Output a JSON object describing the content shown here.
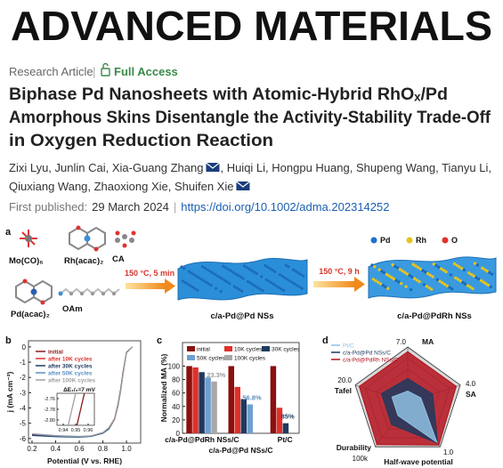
{
  "header": {
    "journal": "ADVANCED MATERIALS",
    "article_type": "Research Article",
    "separator": "|",
    "access": "Full Access"
  },
  "article": {
    "title_lines": [
      "Biphase Pd Nanosheets with Atomic-Hybrid RhOₓ/Pd",
      "Amorphous Skins Disentangle the Activity-Stability Trade-Off",
      "in Oxygen Reduction Reaction"
    ],
    "author_lines": [
      [
        {
          "text": "Zixi Lyu, Junlin Cai, Xia-Guang Zhang",
          "email": true
        },
        {
          "text": ", Huiqi Li, Hongpu Huang, Shupeng Wang, Tianyu Li,",
          "email": false
        }
      ],
      [
        {
          "text": "Qiuxiang Wang, Zhaoxiong Xie, Shuifen Xie",
          "email": true
        }
      ]
    ],
    "published_label": "First published:",
    "published_date": "29 March 2024",
    "doi": "https://doi.org/10.1002/adma.202314252"
  },
  "figure": {
    "panel_a": {
      "label": "a",
      "precursors": [
        "Mo(CO)₆",
        "Rh(acac)₂",
        "CA",
        "Pd(acac)₂",
        "OAm"
      ],
      "steps": [
        "150 °C, 5 min",
        "150 °C, 9 h"
      ],
      "products": [
        "c/a-Pd@Pd NSs",
        "c/a-Pd@PdRh NSs"
      ],
      "legend": [
        {
          "name": "Pd",
          "color": "#1f6fd1"
        },
        {
          "name": "Rh",
          "color": "#e5c41a"
        },
        {
          "name": "O",
          "color": "#e0322a"
        }
      ]
    },
    "panel_b": {
      "label": "b",
      "chart_data": {
        "type": "line",
        "x_label": "Potential (V vs. RHE)",
        "y_label": "j (mA cm⁻²)",
        "x": [
          0.2,
          0.4,
          0.6,
          0.7,
          0.8,
          0.85,
          0.9,
          0.93,
          0.95,
          0.97,
          1.0,
          1.05
        ],
        "series": [
          {
            "name": "initial",
            "color": "#8b1a1a",
            "values": [
              -5.75,
              -5.85,
              -5.9,
              -5.85,
              -5.65,
              -5.35,
              -4.7,
              -3.7,
              -2.78,
              -1.7,
              -0.35,
              0
            ]
          },
          {
            "name": "after 10K cycles",
            "color": "#e0302a",
            "values": [
              -5.7,
              -5.82,
              -5.88,
              -5.83,
              -5.62,
              -5.3,
              -4.68,
              -3.72,
              -2.8,
              -1.72,
              -0.36,
              0
            ]
          },
          {
            "name": "after 30K cycles",
            "color": "#1f3a5f",
            "values": [
              -5.8,
              -5.88,
              -5.92,
              -5.86,
              -5.66,
              -5.38,
              -4.75,
              -3.78,
              -2.85,
              -1.76,
              -0.37,
              0
            ]
          },
          {
            "name": "after 50K cycles",
            "color": "#5b8fc5",
            "values": [
              -5.72,
              -5.84,
              -5.9,
              -5.84,
              -5.63,
              -5.33,
              -4.72,
              -3.8,
              -2.88,
              -1.8,
              -0.38,
              0
            ]
          },
          {
            "name": "after 100K cycles",
            "color": "#a0a0a0",
            "values": [
              -5.68,
              -5.8,
              -5.86,
              -5.82,
              -5.6,
              -5.3,
              -4.74,
              -3.85,
              -2.95,
              -1.85,
              -0.4,
              0
            ]
          }
        ],
        "xlim": [
          0.17,
          1.12
        ],
        "ylim": [
          -6.3,
          0.4
        ],
        "xticks": [
          0.2,
          0.4,
          0.6,
          0.8,
          {
            "value": 1.0,
            "label": "1.0"
          }
        ],
        "yticks": [
          0,
          -1,
          -2,
          -3,
          -4,
          -5,
          -6
        ],
        "inset": {
          "annotation": "ΔE₁/₂=7 mV",
          "xlim": [
            0.935,
            0.965
          ],
          "ylim": [
            -2.81,
            -2.75
          ],
          "xticks": [
            0.94,
            0.95,
            0.96
          ],
          "yticks": [
            -2.76,
            -2.78,
            {
              "value": -2.8,
              "label": "-2.80"
            }
          ],
          "series": [
            {
              "color": "#8b1a1a",
              "x": [
                0.951,
                0.957
              ],
              "values": [
                -2.81,
                -2.75
              ]
            },
            {
              "color": "#a0a0a0",
              "x": [
                0.944,
                0.95
              ],
              "values": [
                -2.81,
                -2.75
              ]
            }
          ]
        }
      }
    },
    "panel_c": {
      "label": "c",
      "chart_data": {
        "type": "bar",
        "y_label": "Normalized MA (%)",
        "categories": [
          "c/a-Pd@PdRh NSs/C",
          "c/a-Pd@Pd NSs/C",
          "Pt/C"
        ],
        "series": [
          {
            "name": "initial",
            "color": "#8b1010",
            "values": [
              100,
              100,
              100
            ]
          },
          {
            "name": "10K cycles",
            "color": "#e0302a",
            "values": [
              98,
              69,
              38
            ]
          },
          {
            "name": "30K cycles",
            "color": "#1f3a5f",
            "values": [
              91,
              51,
              15
            ]
          },
          {
            "name": "50K cycles",
            "color": "#6f9fd0",
            "values": [
              83,
              43,
              null
            ]
          },
          {
            "name": "100K cycles",
            "color": "#a8a8a8",
            "values": [
              77,
              null,
              null
            ]
          }
        ],
        "ylim": [
          0,
          135
        ],
        "yticks": [
          0,
          20,
          40,
          60,
          80,
          100
        ],
        "annotations": [
          {
            "text": "23.3%",
            "color": "#9a9a9a"
          },
          {
            "text": "56.8%",
            "color": "#5a8fc0"
          },
          {
            "text": "85%",
            "color": "#1f3a5f"
          }
        ]
      }
    },
    "panel_d": {
      "label": "d",
      "chart_data": {
        "type": "radar",
        "axes": [
          {
            "name": "MA",
            "max": {
              "value": 7,
              "label": "7.0"
            }
          },
          {
            "name": "SA",
            "max": {
              "value": 4,
              "label": "4.0"
            }
          },
          {
            "name": "Half-wave potential",
            "max": {
              "value": 1,
              "label": "1.0"
            }
          },
          {
            "name": "Durability",
            "max": {
              "value": 100000,
              "label": "100k"
            }
          },
          {
            "name": "Tafel",
            "max": {
              "value": 20,
              "label": "20.0"
            }
          }
        ],
        "series": [
          {
            "name": "Pt/C",
            "color": "#8fc1e3",
            "values": [
              1.4,
              1.0,
              0.9,
              30000,
              6
            ]
          },
          {
            "name": "c/a-Pd@Pd NSs/C",
            "color": "#1f3a5f",
            "values": [
              3.0,
              1.9,
              0.92,
              50000,
              10
            ]
          },
          {
            "name": "c/a-Pd@PdRh NSs/C",
            "color": "#b3121d",
            "values": [
              6.4,
              3.7,
              0.96,
              95000,
              18.5
            ]
          }
        ]
      }
    }
  }
}
